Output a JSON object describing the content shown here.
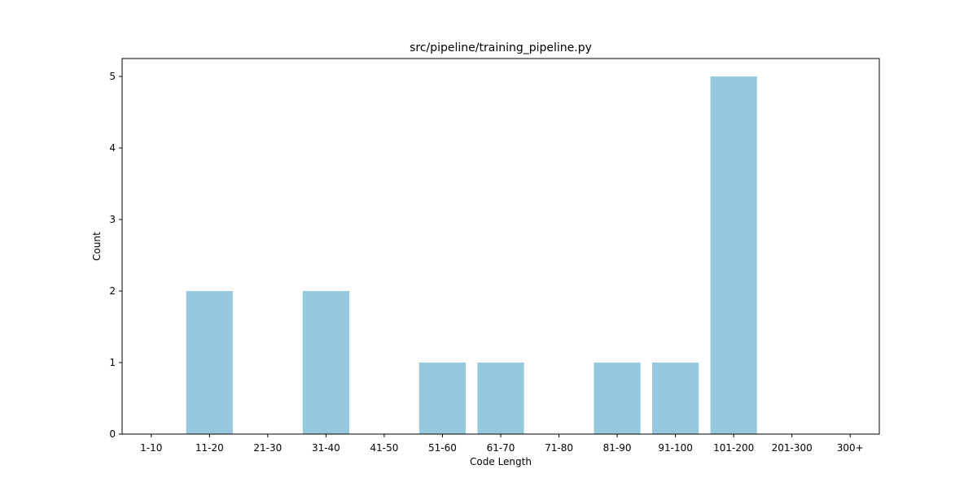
{
  "chart_data": {
    "type": "bar",
    "title": "src/pipeline/training_pipeline.py",
    "xlabel": "Code Length",
    "ylabel": "Count",
    "categories": [
      "1-10",
      "11-20",
      "21-30",
      "31-40",
      "41-50",
      "51-60",
      "61-70",
      "71-80",
      "81-90",
      "91-100",
      "101-200",
      "201-300",
      "300+"
    ],
    "values": [
      0,
      2,
      0,
      2,
      0,
      1,
      1,
      0,
      1,
      1,
      5,
      0,
      0
    ],
    "ylim": [
      0,
      5.25
    ],
    "yticks": [
      0,
      1,
      2,
      3,
      4,
      5
    ],
    "bar_color": "#96c9dd",
    "grid": false,
    "legend": "none"
  }
}
